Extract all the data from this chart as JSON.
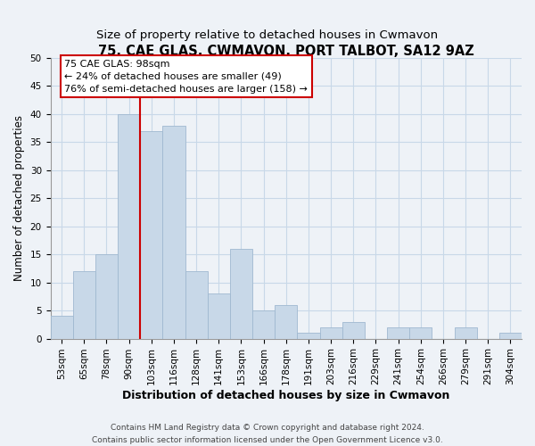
{
  "title": "75, CAE GLAS, CWMAVON, PORT TALBOT, SA12 9AZ",
  "subtitle": "Size of property relative to detached houses in Cwmavon",
  "xlabel": "Distribution of detached houses by size in Cwmavon",
  "ylabel": "Number of detached properties",
  "categories": [
    "53sqm",
    "65sqm",
    "78sqm",
    "90sqm",
    "103sqm",
    "116sqm",
    "128sqm",
    "141sqm",
    "153sqm",
    "166sqm",
    "178sqm",
    "191sqm",
    "203sqm",
    "216sqm",
    "229sqm",
    "241sqm",
    "254sqm",
    "266sqm",
    "279sqm",
    "291sqm",
    "304sqm"
  ],
  "values": [
    4,
    12,
    15,
    40,
    37,
    38,
    12,
    8,
    16,
    5,
    6,
    1,
    2,
    3,
    0,
    2,
    2,
    0,
    2,
    0,
    1
  ],
  "bar_color": "#c8d8e8",
  "bar_edge_color": "#a0b8d0",
  "vline_x_index": 3,
  "vline_color": "#cc0000",
  "annotation_line1": "75 CAE GLAS: 98sqm",
  "annotation_line2": "← 24% of detached houses are smaller (49)",
  "annotation_line3": "76% of semi-detached houses are larger (158) →",
  "annotation_box_color": "white",
  "annotation_box_edge": "#cc0000",
  "ylim": [
    0,
    50
  ],
  "yticks": [
    0,
    5,
    10,
    15,
    20,
    25,
    30,
    35,
    40,
    45,
    50
  ],
  "grid_color": "#c8d8e8",
  "background_color": "#eef2f7",
  "footer_line1": "Contains HM Land Registry data © Crown copyright and database right 2024.",
  "footer_line2": "Contains public sector information licensed under the Open Government Licence v3.0.",
  "title_fontsize": 10.5,
  "subtitle_fontsize": 9.5,
  "xlabel_fontsize": 9,
  "ylabel_fontsize": 8.5,
  "tick_fontsize": 7.5,
  "annotation_fontsize": 8,
  "footer_fontsize": 6.5
}
